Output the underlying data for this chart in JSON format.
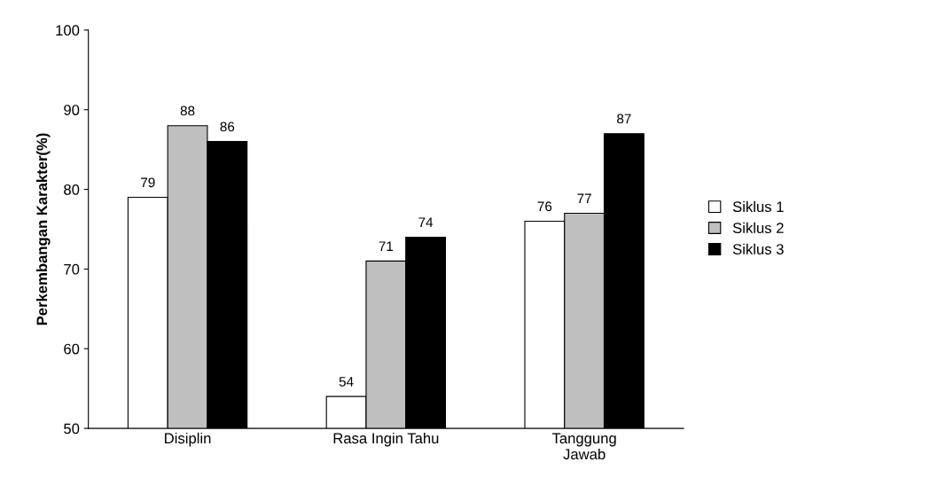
{
  "chart_data": {
    "type": "bar",
    "ylabel": "Perkembangan Karakter(%)",
    "categories": [
      "Disiplin",
      "Rasa Ingin Tahu",
      "Tanggung\nJawab"
    ],
    "series": [
      {
        "name": "Siklus 1",
        "color": "#ffffff",
        "values": [
          79,
          54,
          76
        ]
      },
      {
        "name": "Siklus 2",
        "color": "#bfbfbf",
        "values": [
          88,
          71,
          77
        ]
      },
      {
        "name": "Siklus 3",
        "color": "#000000",
        "values": [
          86,
          74,
          87
        ]
      }
    ],
    "ylim": [
      50,
      100
    ],
    "yticks": [
      50,
      60,
      70,
      80,
      90,
      100
    ],
    "grid": false,
    "legend": "right",
    "data_labels": true
  }
}
